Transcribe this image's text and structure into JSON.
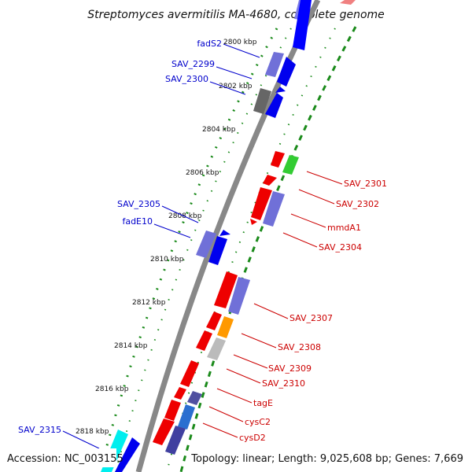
{
  "title": "Streptomyces avermitilis MA-4680, complete genome",
  "footer": {
    "accession": "Accession: NC_003155",
    "summary": "Topology: linear; Length: 9,025,608 bp; Genes: 7,669"
  },
  "ticks": [
    "2800 kbp",
    "2802 kbp",
    "2804 kbp",
    "2806 kbp",
    "2808 kbp",
    "2810 kbp",
    "2812 kbp",
    "2814 kbp",
    "2816 kbp",
    "2818 kbp"
  ],
  "left_labels": [
    "fadS2",
    "SAV_2299",
    "SAV_2300",
    "SAV_2305",
    "fadE10",
    "SAV_2315"
  ],
  "right_labels": [
    "SAV_2301",
    "SAV_2302",
    "mmdA1",
    "SAV_2304",
    "SAV_2307",
    "SAV_2308",
    "SAV_2309",
    "SAV_2310",
    "tagE",
    "cysC2",
    "cysD2"
  ],
  "colors": {
    "left_label": "#0000cc",
    "right_label": "#cc0000",
    "backbone": "#888888",
    "dotted_track": "#1a8a1a",
    "forward_gene": "#0000ff",
    "reverse_gene": "#ff0000"
  }
}
